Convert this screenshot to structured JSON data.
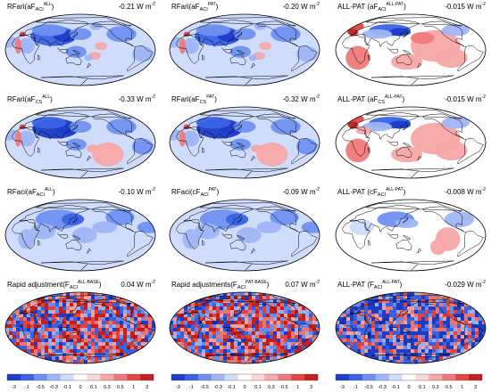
{
  "figure": {
    "colorbar": {
      "ticks": [
        "-3",
        "-1",
        "-0.5",
        "-0.3",
        "-0.1",
        "0",
        "0.1",
        "0.3",
        "0.5",
        "1",
        "3"
      ],
      "colors": [
        "#1e3cc8",
        "#3a63e6",
        "#6f90f0",
        "#9fb5f6",
        "#cfdcfb",
        "#ffffff",
        "#fbd6d6",
        "#f7a8a8",
        "#f07a7a",
        "#e44646",
        "#c81e1e"
      ]
    },
    "panels": [
      {
        "base": "RFari(aF",
        "sub": "ACI",
        "sup": "ALL",
        "close": ")",
        "value": "-0.21 W m",
        "unit_sup": "-2",
        "pattern": "ari_neg"
      },
      {
        "base": "RFari(aF",
        "sub": "ACI",
        "sup": "PAT",
        "close": ")",
        "value": "-0.20 W m",
        "unit_sup": "-2",
        "pattern": "ari_neg"
      },
      {
        "base": "ALL-PAT (aF",
        "sub": "ACI",
        "sup": "ALL-PAT",
        "close": ")",
        "value": "-0.015 W m",
        "unit_sup": "-2",
        "pattern": "diff_ari"
      },
      {
        "base": "RFari(aF",
        "sub": "CS",
        "sup": "ALL",
        "close": ")",
        "value": "-0.33 W m",
        "unit_sup": "-2",
        "pattern": "ari_cs"
      },
      {
        "base": "RFari(aF",
        "sub": "CS",
        "sup": "PAT",
        "close": ")",
        "value": "-0.32 W m",
        "unit_sup": "-2",
        "pattern": "ari_cs"
      },
      {
        "base": "ALL-PAT (aF",
        "sub": "CS",
        "sup": "ALL-PAT",
        "close": ")",
        "value": "-0.015 W m",
        "unit_sup": "-2",
        "pattern": "diff_cs"
      },
      {
        "base": "RFaci(aF",
        "sub": "ACI",
        "sup": "ALL",
        "close": ")",
        "value": "-0.10 W m",
        "unit_sup": "-2",
        "pattern": "aci"
      },
      {
        "base": "RFaci(cF",
        "sub": "ACI",
        "sup": "PAT",
        "close": ")",
        "value": "-0.09 W m",
        "unit_sup": "-2",
        "pattern": "aci"
      },
      {
        "base": "ALL-PAT (cF",
        "sub": "ACI",
        "sup": "ALL-PAT",
        "close": ")",
        "value": "-0.008 W m",
        "unit_sup": "-2",
        "pattern": "diff_aci"
      },
      {
        "base": "Rapid adjustment(F",
        "sub": "ACI",
        "sup": "ALL-BASE",
        "close": ")",
        "value": "0.04 W m",
        "unit_sup": "-2",
        "pattern": "noise"
      },
      {
        "base": "Rapid adjustments(F",
        "sub": "ACI",
        "sup": "PAT-BASE",
        "close": ")",
        "value": "0.07 W m",
        "unit_sup": "-2",
        "pattern": "noise"
      },
      {
        "base": "ALL-PAT (F",
        "sub": "ACI",
        "sup": "ALL-PAT",
        "close": ")",
        "value": "-0.029 W m",
        "unit_sup": "-2",
        "pattern": "noise_diff"
      }
    ]
  }
}
